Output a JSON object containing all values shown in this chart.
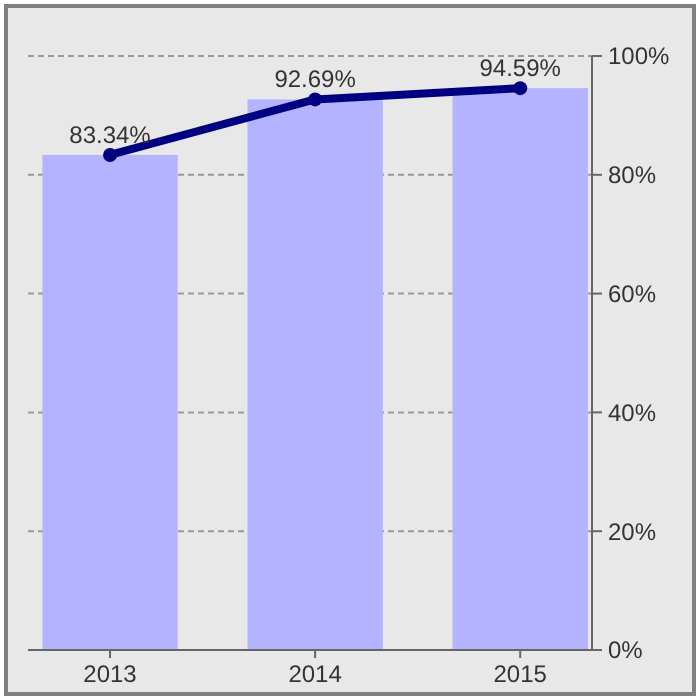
{
  "chart_data": {
    "type": "bar",
    "categories": [
      "2013",
      "2014",
      "2015"
    ],
    "series": [
      {
        "color": "#b3b3ff",
        "values": [
          83.34,
          92.69,
          94.59
        ]
      },
      {
        "type": "line",
        "color": "#000080",
        "values": [
          83.34,
          92.69,
          94.59
        ],
        "value_labels": [
          "83.34%",
          "92.69%",
          "94.59%"
        ]
      }
    ],
    "ylim": [
      0,
      100
    ],
    "yticks": [
      {
        "value": 0,
        "label": "0%"
      },
      {
        "value": 20,
        "label": "20%"
      },
      {
        "value": 40,
        "label": "40%"
      },
      {
        "value": 60,
        "label": "60%"
      },
      {
        "value": 80,
        "label": "80%"
      },
      {
        "value": 100,
        "label": "100%"
      }
    ],
    "grid": "y",
    "marker": "circle",
    "line_style": "solid"
  }
}
